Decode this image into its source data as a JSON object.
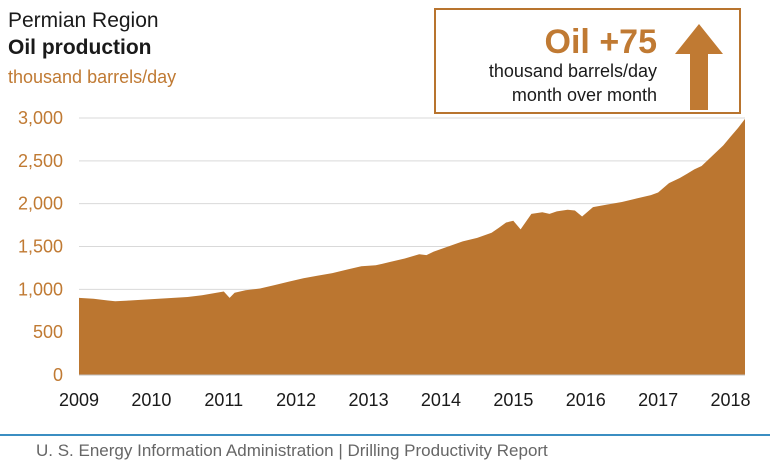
{
  "header": {
    "region": "Permian Region",
    "product": "Oil production",
    "unit": "thousand barrels/day"
  },
  "callout": {
    "headline": "Oil +75",
    "line1": "thousand barrels/day",
    "line2": "month over month",
    "arrow_direction": "up"
  },
  "footer": {
    "text": "U. S. Energy Information Administration  |  Drilling Productivity Report"
  },
  "colors": {
    "accent": "#c07a33",
    "area_fill": "#bb7630",
    "footer_rule": "#3b8ec2"
  },
  "chart_data": {
    "type": "area",
    "title": "Oil production",
    "ylabel": "thousand barrels/day",
    "ylim": [
      0,
      3000
    ],
    "xlim": [
      2009,
      2018.2
    ],
    "yticks": [
      "0",
      "500",
      "1,000",
      "1,500",
      "2,000",
      "2,500",
      "3,000"
    ],
    "ytick_values": [
      0,
      500,
      1000,
      1500,
      2000,
      2500,
      3000
    ],
    "xticks": [
      "2009",
      "2010",
      "2011",
      "2012",
      "2013",
      "2014",
      "2015",
      "2016",
      "2017",
      "2018"
    ],
    "xtick_values": [
      2009,
      2010,
      2011,
      2012,
      2013,
      2014,
      2015,
      2016,
      2017,
      2018
    ],
    "grid": "horizontal",
    "series": [
      {
        "x": [
          2009.0,
          2009.2,
          2009.4,
          2009.5,
          2009.7,
          2009.9,
          2010.1,
          2010.3,
          2010.5,
          2010.7,
          2010.9,
          2011.0,
          2011.08,
          2011.15,
          2011.3,
          2011.5,
          2011.7,
          2011.9,
          2012.1,
          2012.3,
          2012.5,
          2012.7,
          2012.9,
          2013.1,
          2013.3,
          2013.5,
          2013.7,
          2013.8,
          2013.9,
          2014.1,
          2014.3,
          2014.5,
          2014.7,
          2014.8,
          2014.9,
          2015.0,
          2015.1,
          2015.25,
          2015.4,
          2015.5,
          2015.6,
          2015.75,
          2015.85,
          2015.95,
          2016.1,
          2016.3,
          2016.5,
          2016.7,
          2016.9,
          2017.0,
          2017.15,
          2017.3,
          2017.4,
          2017.5,
          2017.6,
          2017.75,
          2017.9,
          2018.0,
          2018.1,
          2018.2
        ],
        "values": [
          900,
          890,
          870,
          860,
          870,
          880,
          890,
          900,
          910,
          930,
          960,
          975,
          900,
          960,
          990,
          1010,
          1050,
          1090,
          1130,
          1160,
          1190,
          1230,
          1270,
          1280,
          1320,
          1360,
          1410,
          1400,
          1440,
          1500,
          1560,
          1600,
          1660,
          1720,
          1780,
          1800,
          1700,
          1880,
          1900,
          1880,
          1910,
          1930,
          1920,
          1850,
          1960,
          1990,
          2020,
          2060,
          2100,
          2130,
          2240,
          2300,
          2350,
          2400,
          2440,
          2560,
          2680,
          2780,
          2880,
          2990
        ]
      }
    ]
  }
}
